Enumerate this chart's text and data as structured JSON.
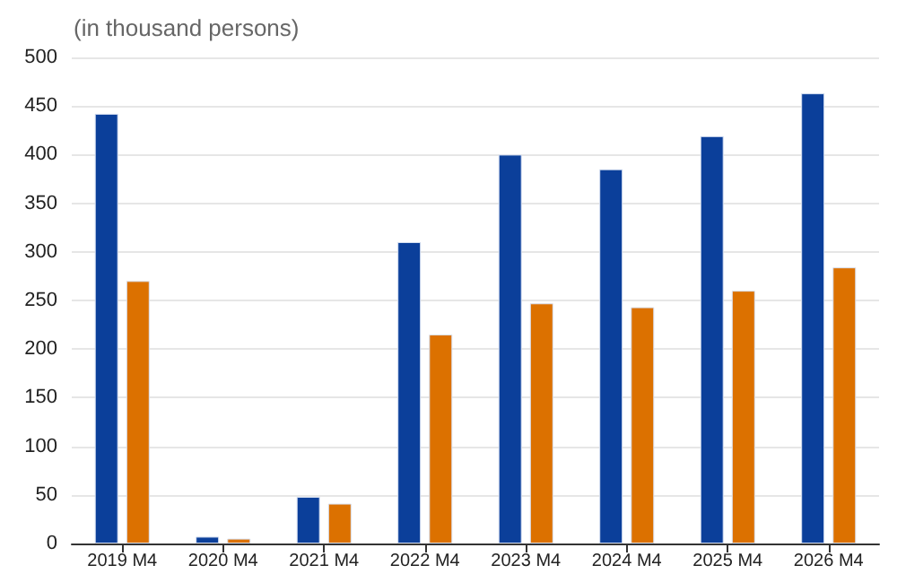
{
  "chart_data": {
    "type": "bar",
    "subtitle": "(in thousand persons)",
    "categories": [
      "2019 M4",
      "2020 M4",
      "2021 M4",
      "2022 M4",
      "2023 M4",
      "2024 M4",
      "2025 M4",
      "2026 M4"
    ],
    "series": [
      {
        "color": "#0b3f9a",
        "values": [
          442,
          7,
          48,
          310,
          400,
          385,
          419,
          463
        ]
      },
      {
        "color": "#dc7100",
        "values": [
          270,
          5,
          41,
          215,
          247,
          243,
          260,
          284
        ]
      }
    ],
    "ylim": [
      0,
      500
    ],
    "yticks": [
      0,
      50,
      100,
      150,
      200,
      250,
      300,
      350,
      400,
      450,
      500
    ],
    "grid": "y"
  }
}
